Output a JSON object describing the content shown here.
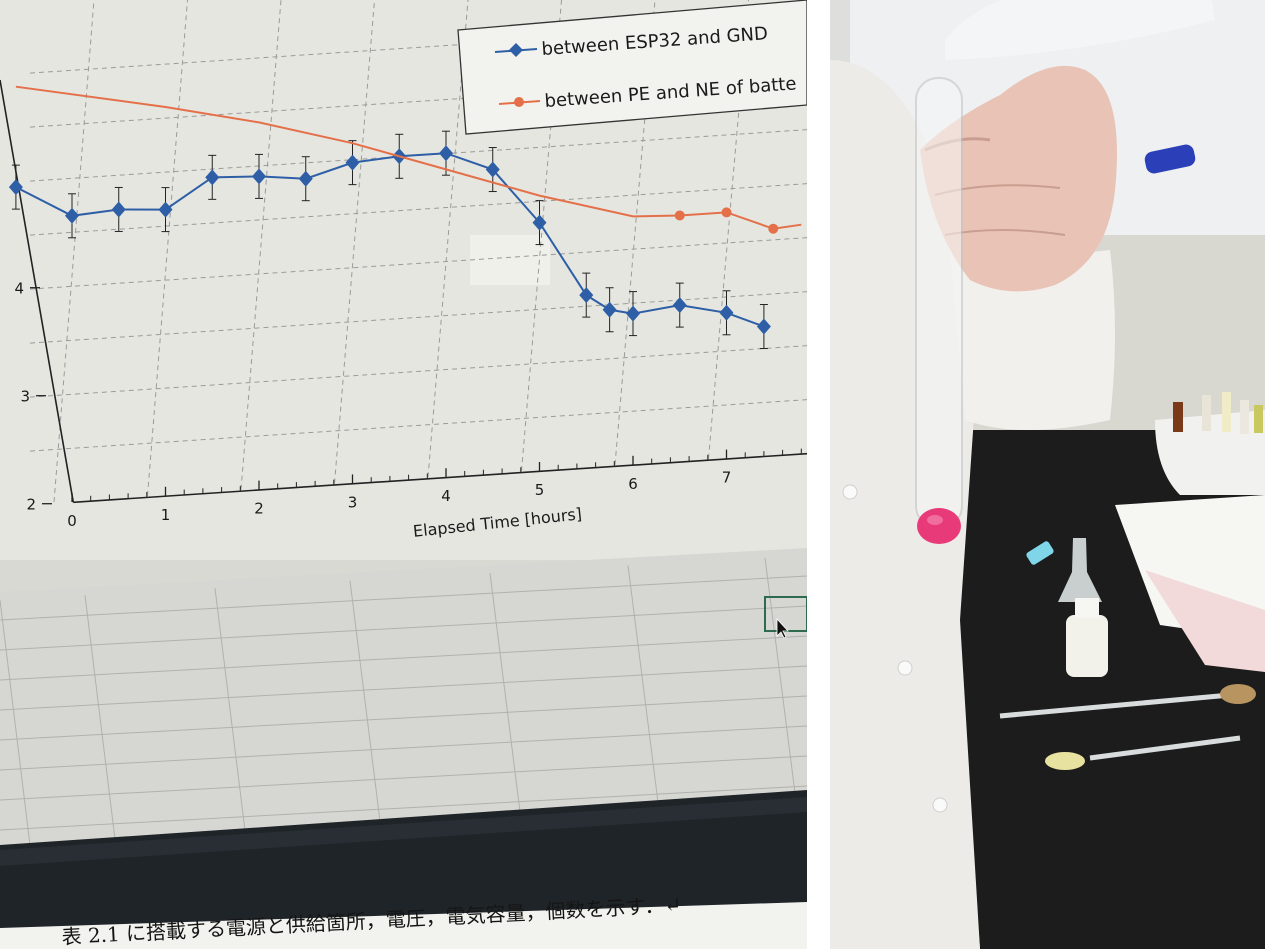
{
  "chart_data": {
    "type": "line",
    "title": "",
    "xlabel": "Elapsed Time [hours]",
    "ylabel": "",
    "xlim": [
      -0.6,
      7.8
    ],
    "ylim": [
      2,
      5.9
    ],
    "x_tick_labels": [
      "0",
      "1",
      "2",
      "3",
      "4",
      "5",
      "6",
      "7"
    ],
    "y_tick_labels": [
      "2",
      "3",
      "4"
    ],
    "grid": true,
    "legend_position": "top-right",
    "series": [
      {
        "name": "between ESP32 and GND",
        "color": "#2e5fa6",
        "marker": "diamond",
        "error_bars": true,
        "points": [
          {
            "x": -0.6,
            "y": 4.95
          },
          {
            "x": 0.0,
            "y": 4.65
          },
          {
            "x": 0.5,
            "y": 4.68
          },
          {
            "x": 1.0,
            "y": 4.65
          },
          {
            "x": 1.5,
            "y": 4.92
          },
          {
            "x": 2.0,
            "y": 4.9
          },
          {
            "x": 2.5,
            "y": 4.85
          },
          {
            "x": 3.0,
            "y": 4.97
          },
          {
            "x": 3.5,
            "y": 5.0
          },
          {
            "x": 4.0,
            "y": 5.0
          },
          {
            "x": 4.5,
            "y": 4.82
          },
          {
            "x": 5.0,
            "y": 4.3
          },
          {
            "x": 5.5,
            "y": 3.6
          },
          {
            "x": 5.75,
            "y": 3.45
          },
          {
            "x": 6.0,
            "y": 3.4
          },
          {
            "x": 6.5,
            "y": 3.45
          },
          {
            "x": 7.0,
            "y": 3.35
          },
          {
            "x": 7.4,
            "y": 3.2
          }
        ]
      },
      {
        "name": "between PE and NE of batte",
        "color": "#e4704a",
        "marker": "circle",
        "error_bars": false,
        "points": [
          {
            "x": -0.6,
            "y": 5.88
          },
          {
            "x": 1.0,
            "y": 5.6
          },
          {
            "x": 2.0,
            "y": 5.4
          },
          {
            "x": 3.0,
            "y": 5.15
          },
          {
            "x": 4.0,
            "y": 4.85
          },
          {
            "x": 5.0,
            "y": 4.55
          },
          {
            "x": 6.0,
            "y": 4.3
          },
          {
            "x": 6.5,
            "y": 4.28,
            "marker": true
          },
          {
            "x": 7.0,
            "y": 4.28,
            "marker": true
          },
          {
            "x": 7.5,
            "y": 4.1,
            "marker": true
          },
          {
            "x": 7.8,
            "y": 4.12
          }
        ]
      }
    ]
  },
  "caption_text": "表 2.1 に搭載する電源と供給箇所，電圧，電気容量，個数を示す．↵",
  "photo_colors": {
    "screen": "#e6e6e1",
    "gridline": "#9a9a9a",
    "spreadsheet_bg": "#d6d6d2",
    "laptop_bezel": "#1f2429",
    "lab_coat": "#ecebe8",
    "bench": "#1c1c1c",
    "liquid": "#e83a78"
  }
}
